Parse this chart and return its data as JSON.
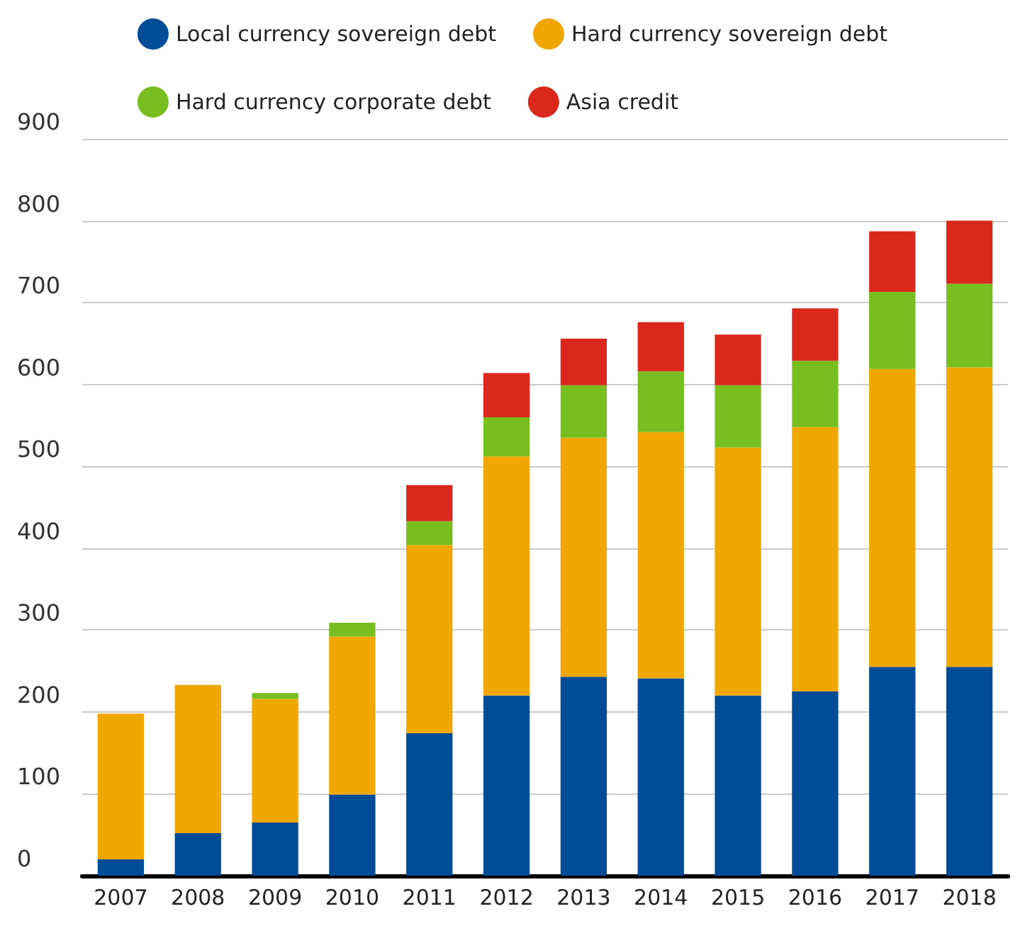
{
  "chart_data": {
    "type": "bar",
    "stacked": true,
    "categories": [
      "2007",
      "2008",
      "2009",
      "2010",
      "2011",
      "2012",
      "2013",
      "2014",
      "2015",
      "2016",
      "2017",
      "2018"
    ],
    "series": [
      {
        "name": "Local currency sovereign debt",
        "color": "#004c97",
        "values": [
          20,
          52,
          65,
          99,
          174,
          220,
          243,
          241,
          220,
          225,
          255,
          255
        ]
      },
      {
        "name": "Hard currency sovereign debt",
        "color": "#f0a800",
        "values": [
          178,
          181,
          151,
          193,
          230,
          292,
          292,
          301,
          303,
          323,
          364,
          366
        ]
      },
      {
        "name": "Hard currency corporate debt",
        "color": "#78be20",
        "values": [
          null,
          null,
          7,
          17,
          29,
          48,
          64,
          74,
          76,
          81,
          94,
          102
        ]
      },
      {
        "name": "Asia credit",
        "color": "#da291c",
        "values": [
          null,
          null,
          null,
          null,
          44,
          54,
          57,
          60,
          62,
          64,
          74,
          77
        ]
      }
    ],
    "ylim": [
      0,
      900
    ],
    "yticks": [
      0,
      100,
      200,
      300,
      400,
      500,
      600,
      700,
      800,
      900
    ],
    "grid": "y",
    "legend": "top"
  }
}
